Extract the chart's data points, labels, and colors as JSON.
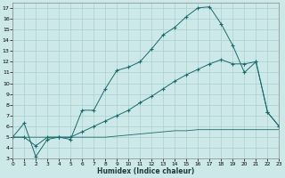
{
  "xlabel": "Humidex (Indice chaleur)",
  "bg_color": "#cde8e8",
  "grid_color": "#aacfcf",
  "line_color": "#1a6b6b",
  "xlim": [
    0,
    23
  ],
  "ylim": [
    3,
    17.5
  ],
  "xticks": [
    0,
    1,
    2,
    3,
    4,
    5,
    6,
    7,
    8,
    9,
    10,
    11,
    12,
    13,
    14,
    15,
    16,
    17,
    18,
    19,
    20,
    21,
    22,
    23
  ],
  "yticks": [
    3,
    4,
    5,
    6,
    7,
    8,
    9,
    10,
    11,
    12,
    13,
    14,
    15,
    16,
    17
  ],
  "line1_x": [
    0,
    1,
    2,
    3,
    4,
    5,
    6,
    7,
    8,
    9,
    10,
    11,
    12,
    13,
    14,
    15,
    16,
    17,
    18,
    19,
    20,
    21,
    22,
    23
  ],
  "line1_y": [
    5.0,
    6.3,
    3.2,
    4.8,
    5.0,
    4.8,
    7.5,
    7.5,
    9.5,
    11.2,
    11.5,
    12.0,
    13.2,
    14.5,
    15.2,
    16.2,
    17.0,
    17.1,
    15.5,
    13.5,
    11.0,
    12.0,
    7.3,
    6.0
  ],
  "line2_x": [
    0,
    1,
    2,
    3,
    4,
    5,
    6,
    7,
    8,
    9,
    10,
    11,
    12,
    13,
    14,
    15,
    16,
    17,
    18,
    19,
    20,
    21,
    22,
    23
  ],
  "line2_y": [
    5.0,
    5.0,
    4.2,
    5.0,
    5.0,
    5.0,
    5.5,
    6.0,
    6.5,
    7.0,
    7.5,
    8.2,
    8.8,
    9.5,
    10.2,
    10.8,
    11.3,
    11.8,
    12.2,
    11.8,
    11.8,
    12.0,
    7.3,
    6.0
  ],
  "line3_x": [
    0,
    1,
    2,
    3,
    4,
    5,
    6,
    7,
    8,
    9,
    10,
    11,
    12,
    13,
    14,
    15,
    16,
    17,
    18,
    19,
    20,
    21,
    22,
    23
  ],
  "line3_y": [
    5.0,
    5.0,
    5.0,
    5.0,
    5.0,
    5.0,
    5.0,
    5.0,
    5.0,
    5.1,
    5.2,
    5.3,
    5.4,
    5.5,
    5.6,
    5.6,
    5.7,
    5.7,
    5.7,
    5.7,
    5.7,
    5.7,
    5.7,
    5.7
  ]
}
